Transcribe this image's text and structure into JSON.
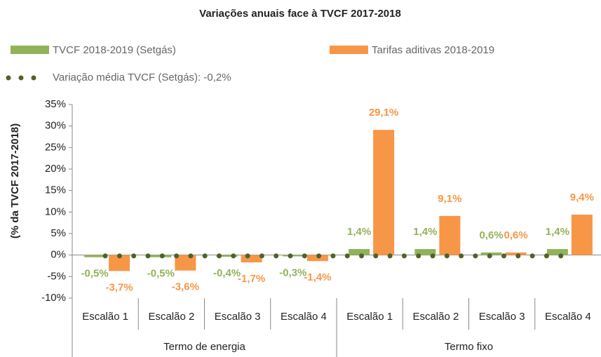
{
  "chart_data": {
    "type": "bar",
    "title": "Variações anuais face à TVCF 2017-2018",
    "y_label": "(% da TVCF 2017-2018)",
    "categories": [
      "Escalão 1",
      "Escalão 2",
      "Escalão 3",
      "Escalão 4",
      "Escalão 1",
      "Escalão 2",
      "Escalão 3",
      "Escalão 4"
    ],
    "groups": [
      "Termo de energia",
      "Termo fixo"
    ],
    "series": [
      {
        "name": "TVCF 2018-2019 (Setgás)",
        "color": "#92b25a",
        "values": [
          -0.5,
          -0.5,
          -0.4,
          -0.3,
          1.4,
          1.4,
          0.6,
          1.4
        ],
        "value_labels": [
          "-0,5%",
          "-0,5%",
          "-0,4%",
          "-0,3%",
          "1,4%",
          "1,4%",
          "0,6%",
          "1,4%"
        ]
      },
      {
        "name": "Tarifas aditivas 2018-2019",
        "color": "#f79646",
        "values": [
          -3.7,
          -3.6,
          -1.7,
          -1.4,
          29.1,
          9.1,
          0.6,
          9.4
        ],
        "value_labels": [
          "-3,7%",
          "-3,6%",
          "-1,7%",
          "-1,4%",
          "29,1%",
          "9,1%",
          "0,6%",
          "9,4%"
        ]
      },
      {
        "name": "Variação média TVCF (Setgás): -0,2%",
        "color": "#4f6228",
        "type": "line",
        "values": [
          -0.2,
          -0.2,
          -0.2,
          -0.2,
          -0.2,
          -0.2,
          -0.2,
          -0.2
        ]
      }
    ],
    "ylim": [
      -10,
      35
    ],
    "yticks": [
      {
        "value": -10,
        "label": "-10%"
      },
      {
        "value": -5,
        "label": "-5%"
      },
      {
        "value": 0,
        "label": "0%"
      },
      {
        "value": 5,
        "label": "5%"
      },
      {
        "value": 10,
        "label": "10%"
      },
      {
        "value": 15,
        "label": "15%"
      },
      {
        "value": 20,
        "label": "20%"
      },
      {
        "value": 25,
        "label": "25%"
      },
      {
        "value": 30,
        "label": "30%"
      },
      {
        "value": 35,
        "label": "35%"
      }
    ]
  }
}
